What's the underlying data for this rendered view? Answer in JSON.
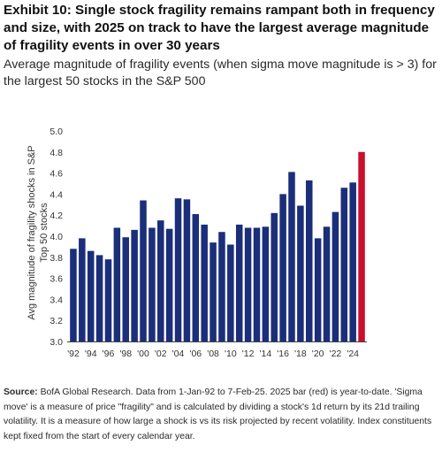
{
  "header": {
    "title": "Exhibit 10: Single stock fragility remains rampant both in frequency and size, with 2025 on track to have the largest average magnitude of fragility events in over 30 years",
    "subtitle": "Average magnitude of fragility events (when sigma move magnitude is > 3) for the largest 50 stocks in the S&P 500"
  },
  "chart_data": {
    "type": "bar",
    "ylabel_line1": "Avg magnitude of fragility shocks in S&P",
    "ylabel_line2": "Top 50 stocks",
    "ylim": [
      3.0,
      5.0
    ],
    "y_ticks": [
      "3.0",
      "3.2",
      "3.4",
      "3.6",
      "3.8",
      "4.0",
      "4.2",
      "4.4",
      "4.6",
      "4.8",
      "5.0"
    ],
    "categories": [
      "1992",
      "1993",
      "1994",
      "1995",
      "1996",
      "1997",
      "1998",
      "1999",
      "2000",
      "2001",
      "2002",
      "2003",
      "2004",
      "2005",
      "2006",
      "2007",
      "2008",
      "2009",
      "2010",
      "2011",
      "2012",
      "2013",
      "2014",
      "2015",
      "2016",
      "2017",
      "2018",
      "2019",
      "2020",
      "2021",
      "2022",
      "2023",
      "2024",
      "2025"
    ],
    "x_tick_labels": [
      "'92",
      "",
      "'94",
      "",
      "'96",
      "",
      "'98",
      "",
      "'00",
      "",
      "'02",
      "",
      "'04",
      "",
      "'06",
      "",
      "'08",
      "",
      "'10",
      "",
      "'12",
      "",
      "'14",
      "",
      "'16",
      "",
      "'18",
      "",
      "'20",
      "",
      "'22",
      "",
      "'24",
      ""
    ],
    "values": [
      3.88,
      3.98,
      3.86,
      3.82,
      3.78,
      4.08,
      3.99,
      4.06,
      4.34,
      4.08,
      4.15,
      4.07,
      4.36,
      4.35,
      4.21,
      4.11,
      3.94,
      4.04,
      3.92,
      4.11,
      4.08,
      4.08,
      4.09,
      4.22,
      4.4,
      4.61,
      4.29,
      4.53,
      3.98,
      4.09,
      4.23,
      4.46,
      4.51,
      4.8
    ],
    "bar_color": "#1a2e7a",
    "highlight_color": "#c8102e",
    "highlight_index": 33,
    "grid": false,
    "legend": "none"
  },
  "footnote": {
    "lead": "Source:",
    "text": " BofA Global Research. Data from 1-Jan-92 to 7-Feb-25. 2025 bar (red) is year-to-date. 'Sigma move' is a measure of price \"fragility\" and is calculated by dividing a stock's 1d return by its 21d trailing volatility. It is a measure of how large a shock is vs its risk projected by recent volatility. Index constituents kept fixed from the start of every calendar year."
  }
}
